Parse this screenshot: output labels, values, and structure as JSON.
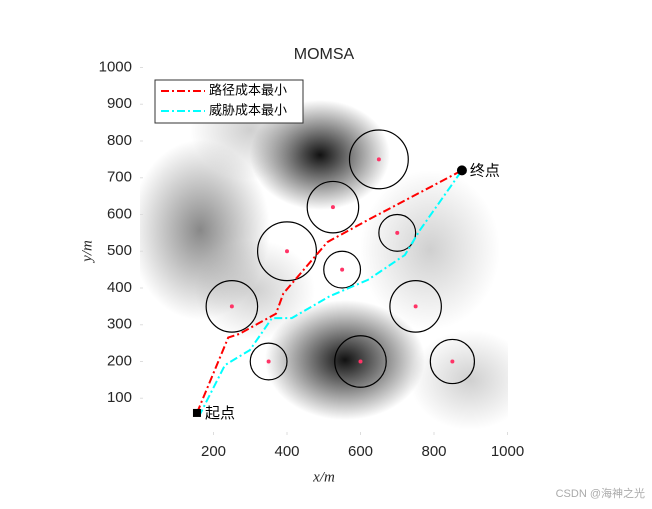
{
  "chart_data": {
    "type": "line",
    "title": "MOMSA",
    "xlabel": "x/m",
    "ylabel": "y/m",
    "xlim": [
      0,
      1000
    ],
    "ylim": [
      0,
      1000
    ],
    "xticks": [
      200,
      400,
      600,
      800,
      1000
    ],
    "yticks": [
      100,
      200,
      300,
      400,
      500,
      600,
      700,
      800,
      900,
      1000
    ],
    "legend_position": "upper left",
    "series": [
      {
        "name": "路径成本最小",
        "color": "#ff0000",
        "x": [
          155,
          240,
          270,
          370,
          390,
          420,
          510,
          620,
          876
        ],
        "values": [
          60,
          265,
          275,
          330,
          385,
          420,
          525,
          585,
          720
        ]
      },
      {
        "name": "威胁成本最小",
        "color": "#00ffff",
        "x": [
          160,
          231,
          299,
          359,
          413,
          517,
          620,
          721,
          762,
          876
        ],
        "values": [
          50,
          190,
          231,
          318,
          318,
          378,
          422,
          490,
          558,
          720
        ]
      }
    ],
    "threats": {
      "color": "#000000",
      "center_color": "#ff3366",
      "x": [
        650,
        525,
        700,
        400,
        550,
        250,
        750,
        350,
        600,
        850
      ],
      "y": [
        750,
        620,
        550,
        500,
        450,
        350,
        350,
        200,
        200,
        200
      ],
      "radius": [
        80,
        70,
        50,
        80,
        50,
        70,
        70,
        50,
        70,
        60
      ]
    },
    "annotations": [
      {
        "text": "起点",
        "x": 155,
        "y": 60,
        "marker": "square"
      },
      {
        "text": "终点",
        "x": 876,
        "y": 720,
        "marker": "circle"
      }
    ],
    "watermark": "CSDN @海神之光"
  }
}
